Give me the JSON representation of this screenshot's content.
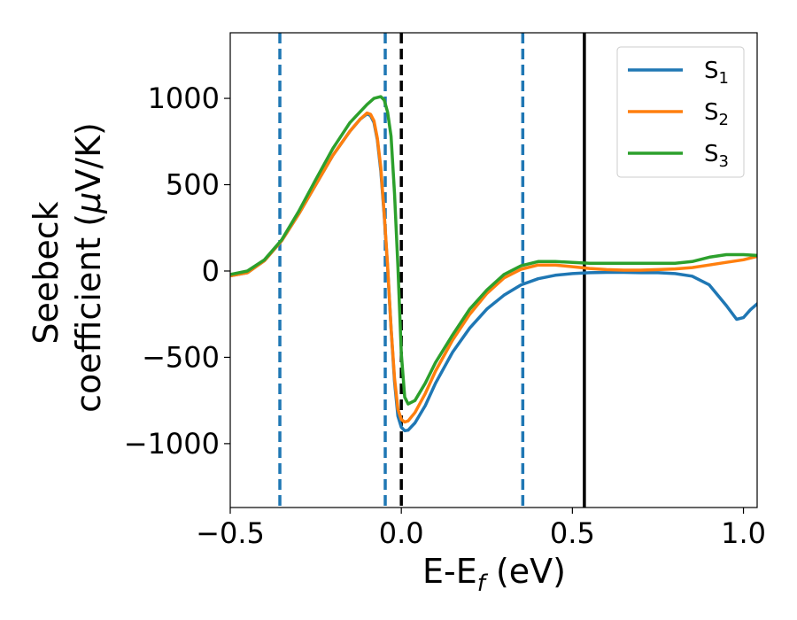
{
  "chart_data": {
    "type": "line",
    "xlabel": {
      "main": "E-E",
      "sub": "f",
      "unit": " (eV)"
    },
    "ylabel": {
      "line1": "Seebeck",
      "line2_text": "coefficient  (",
      "mu": "μ",
      "line2_unit": "V/K)"
    },
    "xlim": [
      -0.5,
      1.04
    ],
    "ylim": [
      -1370,
      1380
    ],
    "xticks": [
      {
        "value": -0.5,
        "label": "−0.5"
      },
      {
        "value": 0.0,
        "label": "0.0"
      },
      {
        "value": 0.5,
        "label": "0.5"
      },
      {
        "value": 1.0,
        "label": "1.0"
      }
    ],
    "yticks": [
      {
        "value": -1000,
        "label": "−1000"
      },
      {
        "value": -500,
        "label": "−500"
      },
      {
        "value": 0,
        "label": "0"
      },
      {
        "value": 500,
        "label": "500"
      },
      {
        "value": 1000,
        "label": "1000"
      }
    ],
    "vlines": [
      {
        "x": -0.355,
        "style": "dashed",
        "color": "#1f77b4"
      },
      {
        "x": -0.047,
        "style": "dashed",
        "color": "#1f77b4"
      },
      {
        "x": 0.0,
        "style": "dashed",
        "color": "#000000"
      },
      {
        "x": 0.355,
        "style": "dashed",
        "color": "#1f77b4"
      },
      {
        "x": 0.535,
        "style": "solid",
        "color": "#000000"
      }
    ],
    "legend_position": "top-right",
    "series": [
      {
        "name": "S",
        "sub": "1",
        "color": "#1f77b4",
        "points": [
          [
            -0.5,
            -28
          ],
          [
            -0.45,
            -10
          ],
          [
            -0.4,
            60
          ],
          [
            -0.35,
            175
          ],
          [
            -0.3,
            330
          ],
          [
            -0.25,
            500
          ],
          [
            -0.2,
            670
          ],
          [
            -0.15,
            810
          ],
          [
            -0.12,
            880
          ],
          [
            -0.1,
            910
          ],
          [
            -0.09,
            900
          ],
          [
            -0.08,
            860
          ],
          [
            -0.07,
            760
          ],
          [
            -0.06,
            580
          ],
          [
            -0.05,
            320
          ],
          [
            -0.04,
            20
          ],
          [
            -0.03,
            -330
          ],
          [
            -0.02,
            -640
          ],
          [
            -0.01,
            -840
          ],
          [
            0.0,
            -905
          ],
          [
            0.01,
            -925
          ],
          [
            0.02,
            -922
          ],
          [
            0.04,
            -880
          ],
          [
            0.07,
            -780
          ],
          [
            0.1,
            -650
          ],
          [
            0.15,
            -470
          ],
          [
            0.2,
            -330
          ],
          [
            0.25,
            -220
          ],
          [
            0.3,
            -140
          ],
          [
            0.35,
            -80
          ],
          [
            0.4,
            -45
          ],
          [
            0.45,
            -25
          ],
          [
            0.5,
            -15
          ],
          [
            0.55,
            -10
          ],
          [
            0.6,
            -8
          ],
          [
            0.65,
            -8
          ],
          [
            0.7,
            -10
          ],
          [
            0.75,
            -10
          ],
          [
            0.8,
            -15
          ],
          [
            0.85,
            -30
          ],
          [
            0.9,
            -80
          ],
          [
            0.95,
            -200
          ],
          [
            0.98,
            -280
          ],
          [
            1.0,
            -270
          ],
          [
            1.02,
            -225
          ],
          [
            1.04,
            -190
          ]
        ]
      },
      {
        "name": "S",
        "sub": "2",
        "color": "#ff7f0e",
        "points": [
          [
            -0.5,
            -28
          ],
          [
            -0.45,
            -10
          ],
          [
            -0.4,
            60
          ],
          [
            -0.35,
            175
          ],
          [
            -0.3,
            330
          ],
          [
            -0.25,
            500
          ],
          [
            -0.2,
            670
          ],
          [
            -0.15,
            810
          ],
          [
            -0.12,
            880
          ],
          [
            -0.1,
            915
          ],
          [
            -0.09,
            908
          ],
          [
            -0.08,
            870
          ],
          [
            -0.07,
            770
          ],
          [
            -0.06,
            600
          ],
          [
            -0.05,
            330
          ],
          [
            -0.04,
            30
          ],
          [
            -0.03,
            -330
          ],
          [
            -0.02,
            -620
          ],
          [
            -0.01,
            -800
          ],
          [
            0.0,
            -860
          ],
          [
            0.01,
            -875
          ],
          [
            0.02,
            -868
          ],
          [
            0.04,
            -820
          ],
          [
            0.07,
            -710
          ],
          [
            0.1,
            -580
          ],
          [
            0.15,
            -400
          ],
          [
            0.2,
            -250
          ],
          [
            0.25,
            -130
          ],
          [
            0.3,
            -40
          ],
          [
            0.35,
            10
          ],
          [
            0.4,
            35
          ],
          [
            0.45,
            35
          ],
          [
            0.5,
            25
          ],
          [
            0.55,
            15
          ],
          [
            0.6,
            8
          ],
          [
            0.65,
            5
          ],
          [
            0.7,
            5
          ],
          [
            0.75,
            8
          ],
          [
            0.8,
            12
          ],
          [
            0.85,
            20
          ],
          [
            0.9,
            35
          ],
          [
            0.95,
            50
          ],
          [
            1.0,
            65
          ],
          [
            1.04,
            85
          ]
        ]
      },
      {
        "name": "S",
        "sub": "3",
        "color": "#2ca02c",
        "points": [
          [
            -0.5,
            -20
          ],
          [
            -0.45,
            0
          ],
          [
            -0.4,
            65
          ],
          [
            -0.35,
            180
          ],
          [
            -0.3,
            345
          ],
          [
            -0.25,
            530
          ],
          [
            -0.2,
            710
          ],
          [
            -0.15,
            860
          ],
          [
            -0.1,
            965
          ],
          [
            -0.08,
            1000
          ],
          [
            -0.06,
            1010
          ],
          [
            -0.05,
            990
          ],
          [
            -0.04,
            920
          ],
          [
            -0.03,
            780
          ],
          [
            -0.02,
            450
          ],
          [
            -0.01,
            30
          ],
          [
            0.0,
            -480
          ],
          [
            0.01,
            -730
          ],
          [
            0.02,
            -770
          ],
          [
            0.04,
            -750
          ],
          [
            0.07,
            -650
          ],
          [
            0.1,
            -530
          ],
          [
            0.15,
            -370
          ],
          [
            0.2,
            -220
          ],
          [
            0.25,
            -110
          ],
          [
            0.3,
            -20
          ],
          [
            0.35,
            30
          ],
          [
            0.4,
            55
          ],
          [
            0.45,
            55
          ],
          [
            0.5,
            50
          ],
          [
            0.55,
            45
          ],
          [
            0.6,
            45
          ],
          [
            0.65,
            45
          ],
          [
            0.7,
            45
          ],
          [
            0.75,
            45
          ],
          [
            0.8,
            45
          ],
          [
            0.85,
            55
          ],
          [
            0.9,
            80
          ],
          [
            0.95,
            95
          ],
          [
            1.0,
            95
          ],
          [
            1.04,
            90
          ]
        ]
      }
    ]
  }
}
